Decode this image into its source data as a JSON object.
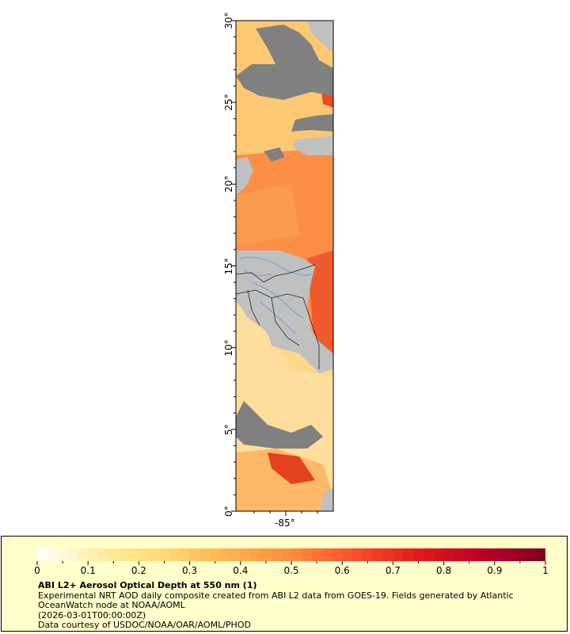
{
  "map": {
    "lat_ticks": [
      {
        "value": 30,
        "label": "30°"
      },
      {
        "value": 25,
        "label": "25°"
      },
      {
        "value": 20,
        "label": "20°"
      },
      {
        "value": 15,
        "label": "15°"
      },
      {
        "value": 10,
        "label": "10°"
      },
      {
        "value": 5,
        "label": "5°"
      },
      {
        "value": 0,
        "label": "0°"
      }
    ],
    "lon_ticks": [
      {
        "value": -85,
        "label": "-85°"
      }
    ],
    "lat_range": [
      0,
      30
    ],
    "colors": {
      "land": "#c0c0c0",
      "no_data": "#808080",
      "political_borders": "#222222",
      "rivers": "#6e9ed6"
    }
  },
  "legend": {
    "title": "ABI L2+ Aerosol Optical Depth at 550 nm (1)",
    "line1": "Experimental NRT AOD daily composite created from ABI L2 data from GOES-19. Fields generated by Atlantic OceanWatch node at NOAA/AOML",
    "line2": "(2026-03-01T00:00:00Z)",
    "line3": "Data courtesy of USDOC/NOAA/OAR/AOML/PHOD",
    "background": "#ffffcc",
    "colorbar": {
      "min": 0,
      "max": 1,
      "tick_labels": [
        "0",
        "0.1",
        "0.2",
        "0.3",
        "0.4",
        "0.5",
        "0.6",
        "0.7",
        "0.8",
        "0.9",
        "1"
      ],
      "colors": [
        "#ffffff",
        "#ffeda0",
        "#fed976",
        "#feb24c",
        "#fd8d3c",
        "#fc4e2a",
        "#e31a1c",
        "#bd0026",
        "#800026"
      ]
    }
  }
}
